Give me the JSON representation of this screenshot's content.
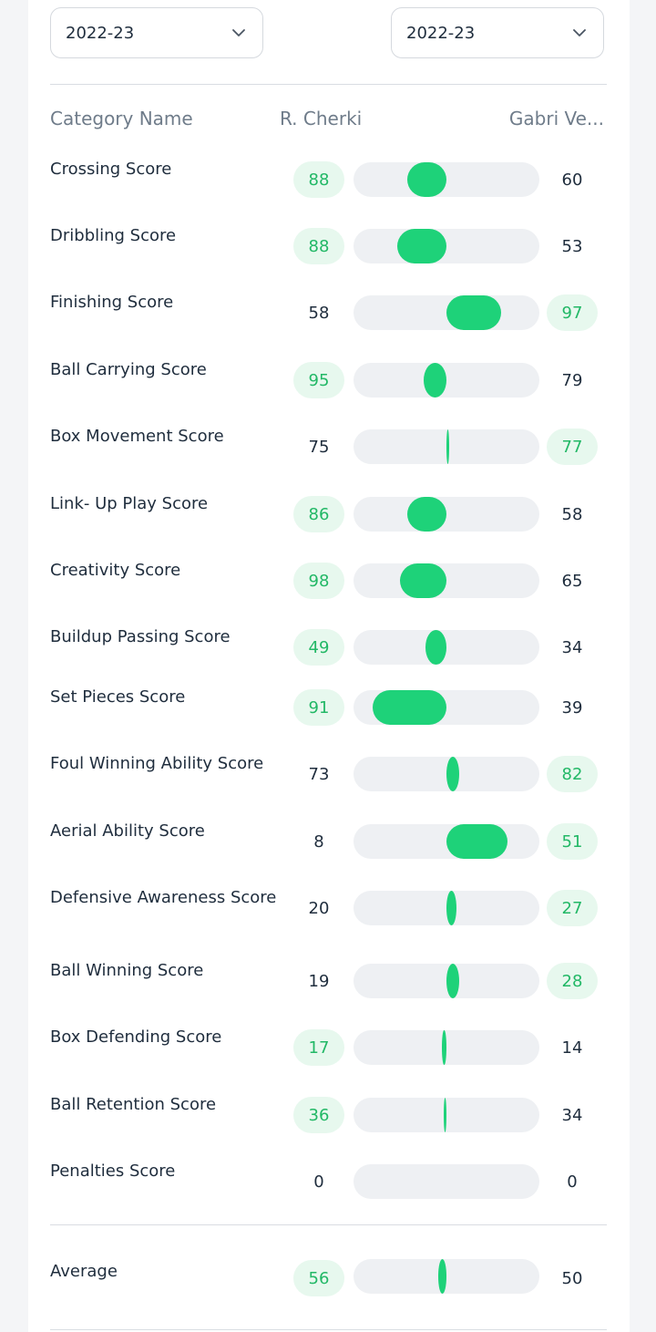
{
  "selectors": {
    "left": {
      "value": "2022-23",
      "icon": "chevron-down-icon"
    },
    "right": {
      "value": "2022-23",
      "icon": "chevron-down-icon"
    }
  },
  "header": {
    "category": "Category Name",
    "player_left": "R. Cherki",
    "player_right": "Gabri Ve..."
  },
  "rows": [
    {
      "label": "Crossing Score",
      "left": 88,
      "right": 60
    },
    {
      "label": "Dribbling Score",
      "left": 88,
      "right": 53
    },
    {
      "label": "Finishing Score",
      "left": 58,
      "right": 97
    },
    {
      "label": "Ball Carrying Score",
      "left": 95,
      "right": 79
    },
    {
      "label": "Box Movement Score",
      "left": 75,
      "right": 77
    },
    {
      "label": "Link- Up Play Score",
      "left": 86,
      "right": 58
    },
    {
      "label": "Creativity Score",
      "left": 98,
      "right": 65
    },
    {
      "label": "Buildup Passing Score",
      "left": 49,
      "right": 34
    },
    {
      "label": "Set Pieces Score",
      "left": 91,
      "right": 39
    },
    {
      "label": "Foul Winning Ability Score",
      "left": 73,
      "right": 82
    },
    {
      "label": "Aerial Ability Score",
      "left": 8,
      "right": 51
    },
    {
      "label": "Defensive Awareness Score",
      "left": 20,
      "right": 27
    },
    {
      "label": "Ball Winning Score",
      "left": 19,
      "right": 28
    },
    {
      "label": "Box Defending Score",
      "left": 17,
      "right": 14
    },
    {
      "label": "Ball Retention Score",
      "left": 36,
      "right": 34
    },
    {
      "label": "Penalties Score",
      "left": 0,
      "right": 0
    }
  ],
  "average": {
    "label": "Average",
    "left": 56,
    "right": 50
  },
  "colors": {
    "accent": "#1ed279",
    "win_bg": "#e7f8ee",
    "win_text": "#22b866",
    "track": "#eef0f3"
  }
}
